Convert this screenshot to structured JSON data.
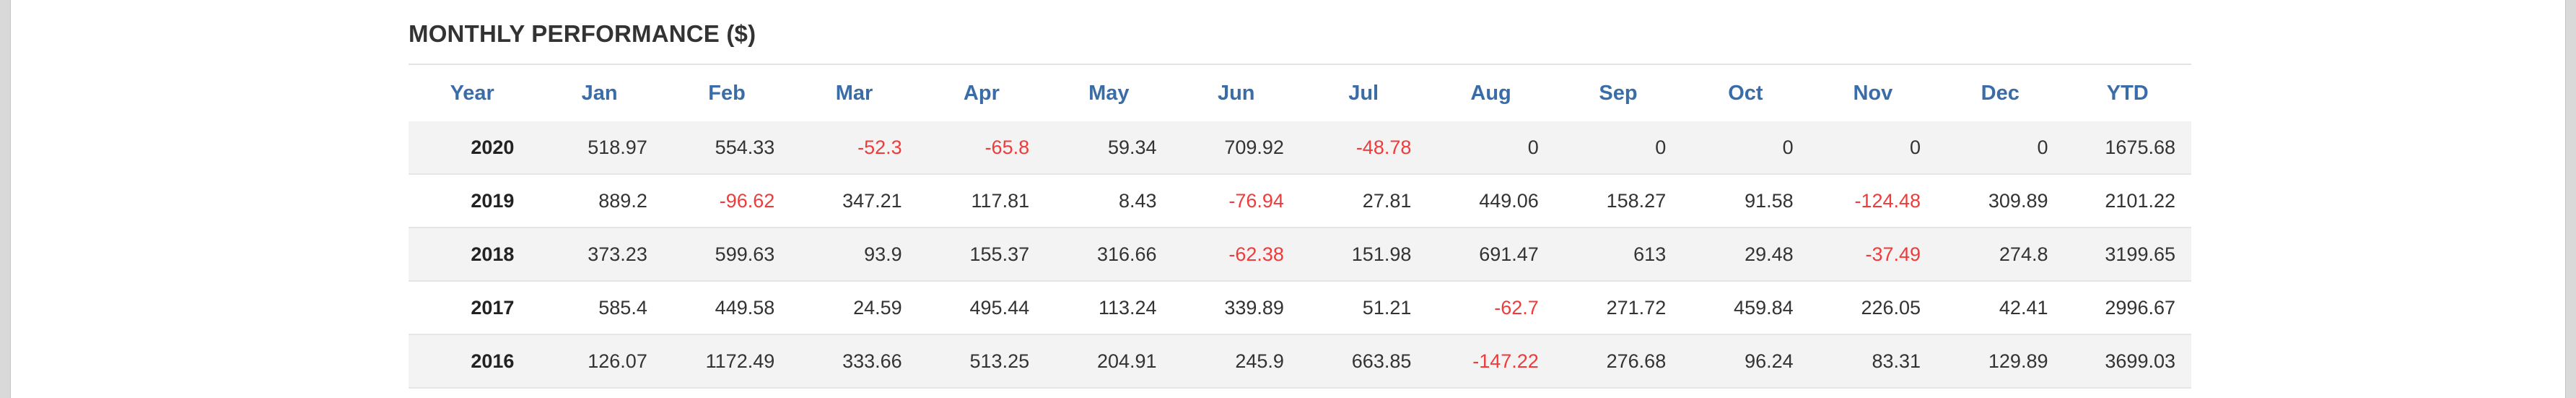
{
  "title": "MONTHLY PERFORMANCE ($)",
  "colors": {
    "header_text": "#3a6da8",
    "negative": "#ef3b3b",
    "text": "#333333",
    "stripe": "#f3f3f3"
  },
  "headers": [
    "Year",
    "Jan",
    "Feb",
    "Mar",
    "Apr",
    "May",
    "Jun",
    "Jul",
    "Aug",
    "Sep",
    "Oct",
    "Nov",
    "Dec",
    "YTD"
  ],
  "rows": [
    {
      "year": "2020",
      "cells": [
        "518.97",
        "554.33",
        "-52.3",
        "-65.8",
        "59.34",
        "709.92",
        "-48.78",
        "0",
        "0",
        "0",
        "0",
        "0",
        "1675.68"
      ]
    },
    {
      "year": "2019",
      "cells": [
        "889.2",
        "-96.62",
        "347.21",
        "117.81",
        "8.43",
        "-76.94",
        "27.81",
        "449.06",
        "158.27",
        "91.58",
        "-124.48",
        "309.89",
        "2101.22"
      ]
    },
    {
      "year": "2018",
      "cells": [
        "373.23",
        "599.63",
        "93.9",
        "155.37",
        "316.66",
        "-62.38",
        "151.98",
        "691.47",
        "613",
        "29.48",
        "-37.49",
        "274.8",
        "3199.65"
      ]
    },
    {
      "year": "2017",
      "cells": [
        "585.4",
        "449.58",
        "24.59",
        "495.44",
        "113.24",
        "339.89",
        "51.21",
        "-62.7",
        "271.72",
        "459.84",
        "226.05",
        "42.41",
        "2996.67"
      ]
    },
    {
      "year": "2016",
      "cells": [
        "126.07",
        "1172.49",
        "333.66",
        "513.25",
        "204.91",
        "245.9",
        "663.85",
        "-147.22",
        "276.68",
        "96.24",
        "83.31",
        "129.89",
        "3699.03"
      ]
    }
  ]
}
